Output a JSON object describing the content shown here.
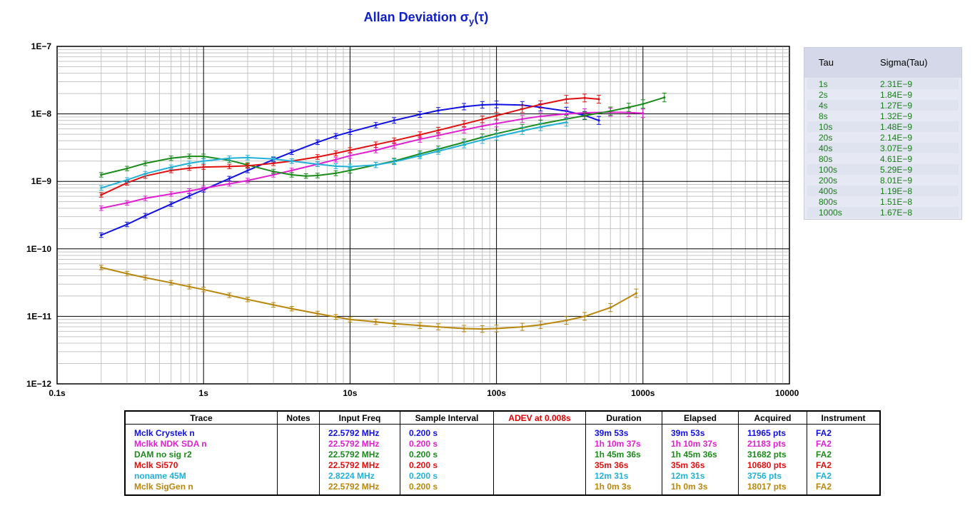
{
  "chart_data": {
    "type": "line",
    "title": "Allan Deviation",
    "title_symbol": "σ",
    "title_sub": "y",
    "title_arg": "(τ)",
    "x_scale": "log",
    "y_scale": "log",
    "xlim": [
      0.1,
      10000
    ],
    "ylim": [
      1e-12,
      1e-07
    ],
    "grid": true,
    "x_tick_labels": [
      "0.1s",
      "1s",
      "10s",
      "100s",
      "1000s",
      "10000s"
    ],
    "y_tick_labels": [
      "1E−12",
      "1E−11",
      "1E−10",
      "1E−9",
      "1E−8",
      "1E−7"
    ],
    "series": [
      {
        "name": "Mclk Crystek n",
        "color": "#1010e0",
        "x": [
          0.2,
          0.3,
          0.4,
          0.6,
          0.8,
          1,
          1.5,
          2,
          3,
          4,
          6,
          8,
          10,
          15,
          20,
          30,
          40,
          60,
          80,
          100,
          150,
          200,
          300,
          400,
          500
        ],
        "y": [
          1.6e-10,
          2.3e-10,
          3.1e-10,
          4.6e-10,
          6.1e-10,
          7.5e-10,
          1.1e-09,
          1.45e-09,
          2.1e-09,
          2.7e-09,
          3.8e-09,
          4.7e-09,
          5.4e-09,
          6.8e-09,
          8e-09,
          9.8e-09,
          1.12e-08,
          1.28e-08,
          1.36e-08,
          1.38e-08,
          1.35e-08,
          1.25e-08,
          1.1e-08,
          9.5e-09,
          8e-09
        ]
      },
      {
        "name": "Mclkk NDK SDA n",
        "color": "#e020d0",
        "x": [
          0.2,
          0.3,
          0.4,
          0.6,
          0.8,
          1,
          1.5,
          2,
          3,
          4,
          6,
          8,
          10,
          15,
          20,
          30,
          40,
          60,
          80,
          100,
          150,
          200,
          300,
          400,
          600,
          800,
          1000
        ],
        "y": [
          4e-10,
          4.8e-10,
          5.6e-10,
          6.5e-10,
          7.2e-10,
          7.9e-10,
          9.2e-10,
          1.03e-09,
          1.25e-09,
          1.45e-09,
          1.8e-09,
          2.1e-09,
          2.4e-09,
          2.9e-09,
          3.4e-09,
          4.2e-09,
          4.8e-09,
          5.8e-09,
          6.6e-09,
          7.2e-09,
          8.4e-09,
          9.2e-09,
          1e-08,
          1.04e-08,
          1.06e-08,
          1.05e-08,
          1.02e-08
        ]
      },
      {
        "name": "DAM no sig r2",
        "color": "#1a8a1a",
        "x": [
          0.2,
          0.3,
          0.4,
          0.6,
          0.8,
          1,
          1.5,
          2,
          3,
          4,
          5,
          6,
          8,
          10,
          15,
          20,
          30,
          40,
          60,
          80,
          100,
          150,
          200,
          300,
          400,
          600,
          800,
          1000,
          1400
        ],
        "y": [
          1.25e-09,
          1.55e-09,
          1.85e-09,
          2.2e-09,
          2.35e-09,
          2.35e-09,
          2.05e-09,
          1.75e-09,
          1.4e-09,
          1.25e-09,
          1.2e-09,
          1.22e-09,
          1.32e-09,
          1.45e-09,
          1.75e-09,
          2e-09,
          2.55e-09,
          3e-09,
          3.8e-09,
          4.5e-09,
          5.1e-09,
          6.2e-09,
          7.1e-09,
          8.4e-09,
          9.4e-09,
          1.1e-08,
          1.25e-08,
          1.4e-08,
          1.75e-08
        ]
      },
      {
        "name": "Mclk Si570",
        "color": "#e01010",
        "x": [
          0.2,
          0.3,
          0.4,
          0.6,
          0.8,
          1,
          1.5,
          2,
          3,
          4,
          6,
          8,
          10,
          15,
          20,
          30,
          40,
          60,
          80,
          100,
          150,
          200,
          300,
          400,
          500
        ],
        "y": [
          6.3e-10,
          9.5e-10,
          1.2e-09,
          1.45e-09,
          1.57e-09,
          1.63e-09,
          1.66e-09,
          1.7e-09,
          1.85e-09,
          2e-09,
          2.3e-09,
          2.6e-09,
          2.9e-09,
          3.5e-09,
          4e-09,
          4.9e-09,
          5.7e-09,
          7.1e-09,
          8.3e-09,
          9.4e-09,
          1.18e-08,
          1.38e-08,
          1.65e-08,
          1.72e-08,
          1.65e-08
        ]
      },
      {
        "name": "noname 45M",
        "color": "#20b0d8",
        "x": [
          0.2,
          0.3,
          0.4,
          0.6,
          0.8,
          1,
          1.5,
          2,
          3,
          4,
          6,
          8,
          10,
          15,
          20,
          30,
          40,
          60,
          80,
          100,
          150,
          200,
          300
        ],
        "y": [
          8e-10,
          1.05e-09,
          1.3e-09,
          1.62e-09,
          1.85e-09,
          2e-09,
          2.2e-09,
          2.25e-09,
          2.15e-09,
          2e-09,
          1.8e-09,
          1.68e-09,
          1.65e-09,
          1.75e-09,
          1.95e-09,
          2.4e-09,
          2.8e-09,
          3.5e-09,
          4.1e-09,
          4.6e-09,
          5.6e-09,
          6.4e-09,
          7.5e-09
        ]
      },
      {
        "name": "Mclk SigGen n",
        "color": "#b8860b",
        "x": [
          0.2,
          0.3,
          0.4,
          0.6,
          0.8,
          1,
          1.5,
          2,
          3,
          4,
          6,
          8,
          10,
          15,
          20,
          30,
          40,
          60,
          80,
          100,
          150,
          200,
          300,
          400,
          600,
          900
        ],
        "y": [
          5.3e-11,
          4.3e-11,
          3.75e-11,
          3.15e-11,
          2.75e-11,
          2.5e-11,
          2.05e-11,
          1.78e-11,
          1.48e-11,
          1.3e-11,
          1.1e-11,
          9.8e-12,
          9e-12,
          8.3e-12,
          7.8e-12,
          7.3e-12,
          7e-12,
          6.6e-12,
          6.5e-12,
          6.6e-12,
          7e-12,
          7.5e-12,
          8.7e-12,
          1e-11,
          1.35e-11,
          2.2e-11
        ]
      }
    ]
  },
  "tau_table": {
    "headers": [
      "Tau",
      "Sigma(Tau)"
    ],
    "rows": [
      [
        "1s",
        "2.31E−9"
      ],
      [
        "2s",
        "1.84E−9"
      ],
      [
        "4s",
        "1.27E−9"
      ],
      [
        "8s",
        "1.32E−9"
      ],
      [
        "10s",
        "1.48E−9"
      ],
      [
        "20s",
        "2.14E−9"
      ],
      [
        "40s",
        "3.07E−9"
      ],
      [
        "80s",
        "4.61E−9"
      ],
      [
        "100s",
        "5.29E−9"
      ],
      [
        "200s",
        "8.01E−9"
      ],
      [
        "400s",
        "1.19E−8"
      ],
      [
        "800s",
        "1.51E−8"
      ],
      [
        "1000s",
        "1.67E−8"
      ]
    ]
  },
  "trace_table": {
    "headers": [
      "Trace",
      "Notes",
      "Input Freq",
      "Sample Interval",
      "ADEV at 0.008s",
      "Duration",
      "Elapsed",
      "Acquired",
      "Instrument"
    ],
    "rows": [
      {
        "color": "#1010e0",
        "cells": [
          "Mclk Crystek n",
          "",
          "22.5792 MHz",
          "0.200 s",
          "",
          "39m 53s",
          "39m 53s",
          "11965 pts",
          "FA2"
        ]
      },
      {
        "color": "#e020d0",
        "cells": [
          "Mclkk NDK SDA n",
          "",
          "22.5792 MHz",
          "0.200 s",
          "",
          "1h 10m 37s",
          "1h 10m 37s",
          "21183 pts",
          "FA2"
        ]
      },
      {
        "color": "#1a8a1a",
        "cells": [
          "DAM no sig r2",
          "",
          "22.5792 MHz",
          "0.200 s",
          "",
          "1h 45m 36s",
          "1h 45m 36s",
          "31682 pts",
          "FA2"
        ]
      },
      {
        "color": "#e01010",
        "cells": [
          "Mclk Si570",
          "",
          "22.5792 MHz",
          "0.200 s",
          "",
          "35m 36s",
          "35m 36s",
          "10680 pts",
          "FA2"
        ]
      },
      {
        "color": "#20b0d8",
        "cells": [
          "noname 45M",
          "",
          "2.8224 MHz",
          "0.200 s",
          "",
          "12m 31s",
          "12m 31s",
          "3756 pts",
          "FA2"
        ]
      },
      {
        "color": "#b8860b",
        "cells": [
          "Mclk SigGen n",
          "",
          "22.5792 MHz",
          "0.200 s",
          "",
          "1h 0m 3s",
          "1h 0m 3s",
          "18017 pts",
          "FA2"
        ]
      }
    ]
  }
}
